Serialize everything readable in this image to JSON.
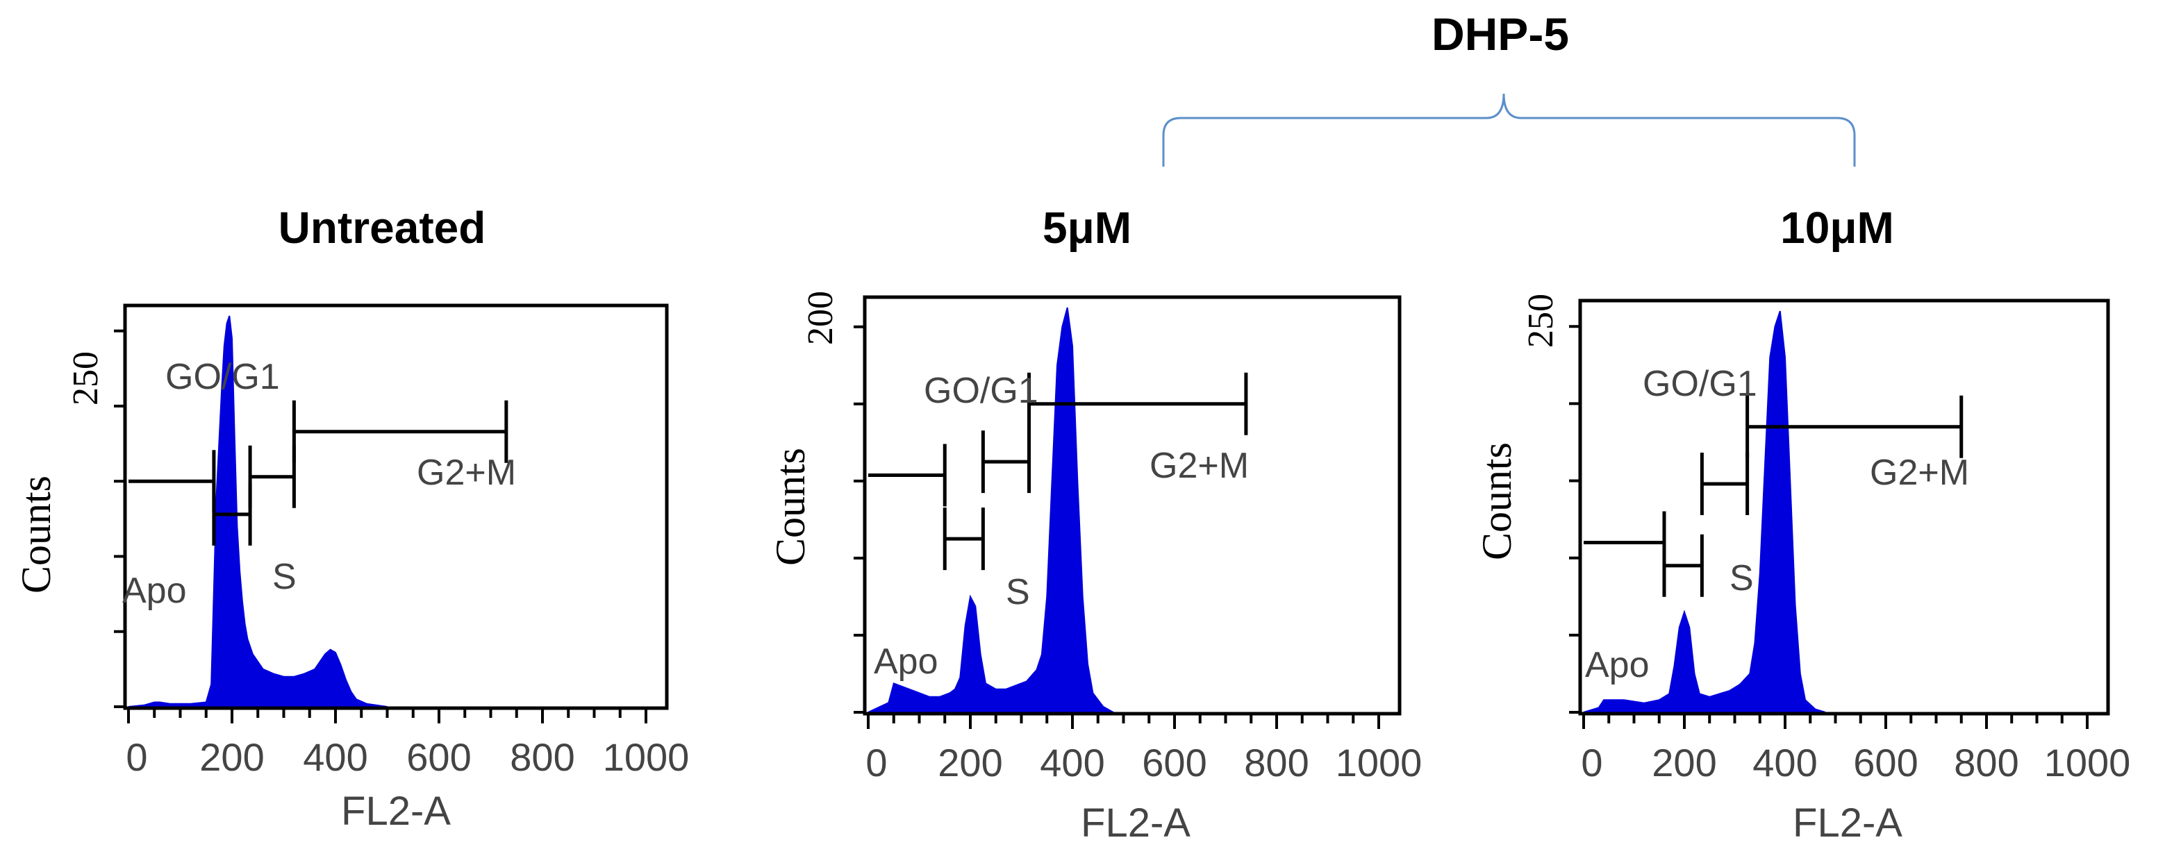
{
  "figure": {
    "group_label": "DHP-5",
    "bracket_color": "#5b8fc9",
    "histogram_fill": "#0000dd",
    "line_color": "#000000"
  },
  "chart_data": [
    {
      "type": "area",
      "title": "Untreated",
      "xlabel": "FL2-A",
      "ylabel": "Counts",
      "xlim": [
        0,
        1000
      ],
      "ylim": [
        0,
        260
      ],
      "x_ticks": [
        "0",
        "200",
        "400",
        "600",
        "800",
        "1000"
      ],
      "y_tick_label": "250",
      "y_tick_value": 250,
      "phase_labels": {
        "apo": "Apo",
        "g0g1": "GO/G1",
        "s": "S",
        "g2m": "G2+M"
      },
      "gates": [
        {
          "name": "Apo",
          "from": 0,
          "to": 165,
          "level": 150
        },
        {
          "name": "S",
          "from": 165,
          "to": 235,
          "level": 128
        },
        {
          "name": "G0/G1",
          "from": 235,
          "to": 320,
          "level": 153
        },
        {
          "name": "G2+M",
          "from": 320,
          "to": 730,
          "level": 183
        }
      ],
      "x": [
        0,
        30,
        50,
        60,
        80,
        100,
        120,
        150,
        160,
        170,
        180,
        185,
        190,
        195,
        200,
        205,
        210,
        215,
        220,
        225,
        230,
        240,
        260,
        280,
        300,
        320,
        340,
        360,
        370,
        380,
        390,
        400,
        410,
        420,
        430,
        440,
        460,
        500
      ],
      "counts": [
        0,
        1,
        3,
        3,
        2,
        2,
        2,
        3,
        15,
        140,
        210,
        240,
        255,
        260,
        245,
        180,
        120,
        90,
        70,
        55,
        45,
        35,
        25,
        22,
        20,
        20,
        22,
        25,
        30,
        35,
        38,
        36,
        28,
        18,
        10,
        5,
        2,
        0
      ]
    },
    {
      "type": "area",
      "title": "5μM",
      "xlabel": "FL2-A",
      "ylabel": "Counts",
      "xlim": [
        0,
        1000
      ],
      "ylim": [
        0,
        210
      ],
      "x_ticks": [
        "0",
        "200",
        "400",
        "600",
        "800",
        "1000"
      ],
      "y_tick_label": "200",
      "y_tick_value": 200,
      "phase_labels": {
        "apo": "Apo",
        "g0g1": "GO/G1",
        "s": "S",
        "g2m": "G2+M"
      },
      "gates": [
        {
          "name": "Apo",
          "from": 0,
          "to": 150,
          "level": 123
        },
        {
          "name": "S",
          "from": 150,
          "to": 225,
          "level": 90
        },
        {
          "name": "G0/G1",
          "from": 225,
          "to": 315,
          "level": 130
        },
        {
          "name": "G2+M",
          "from": 315,
          "to": 740,
          "level": 160
        }
      ],
      "x": [
        0,
        40,
        50,
        80,
        100,
        120,
        140,
        160,
        170,
        180,
        190,
        200,
        210,
        220,
        230,
        250,
        270,
        290,
        310,
        330,
        340,
        350,
        360,
        370,
        380,
        390,
        400,
        410,
        420,
        430,
        440,
        460,
        480
      ],
      "counts": [
        0,
        5,
        15,
        12,
        10,
        8,
        8,
        10,
        12,
        18,
        45,
        60,
        55,
        30,
        15,
        12,
        12,
        14,
        16,
        22,
        30,
        60,
        120,
        180,
        200,
        210,
        190,
        120,
        60,
        25,
        10,
        3,
        0
      ]
    },
    {
      "type": "area",
      "title": "10μM",
      "xlabel": "FL2-A",
      "ylabel": "Counts",
      "xlim": [
        0,
        1000
      ],
      "ylim": [
        0,
        260
      ],
      "x_ticks": [
        "0",
        "200",
        "400",
        "600",
        "800",
        "1000"
      ],
      "y_tick_label": "250",
      "y_tick_value": 250,
      "phase_labels": {
        "apo": "Apo",
        "g0g1": "GO/G1",
        "s": "S",
        "g2m": "G2+M"
      },
      "gates": [
        {
          "name": "Apo",
          "from": 0,
          "to": 160,
          "level": 110
        },
        {
          "name": "S",
          "from": 160,
          "to": 235,
          "level": 95
        },
        {
          "name": "G0/G1",
          "from": 235,
          "to": 325,
          "level": 148
        },
        {
          "name": "G2+M",
          "from": 325,
          "to": 750,
          "level": 185
        }
      ],
      "x": [
        0,
        30,
        40,
        80,
        120,
        150,
        170,
        180,
        190,
        200,
        210,
        220,
        230,
        250,
        270,
        290,
        310,
        330,
        340,
        350,
        360,
        370,
        380,
        390,
        400,
        410,
        420,
        430,
        440,
        460,
        480
      ],
      "counts": [
        0,
        3,
        8,
        8,
        6,
        8,
        12,
        30,
        55,
        65,
        55,
        25,
        12,
        10,
        12,
        14,
        18,
        25,
        45,
        90,
        160,
        230,
        250,
        260,
        230,
        150,
        70,
        25,
        8,
        2,
        0
      ]
    }
  ]
}
